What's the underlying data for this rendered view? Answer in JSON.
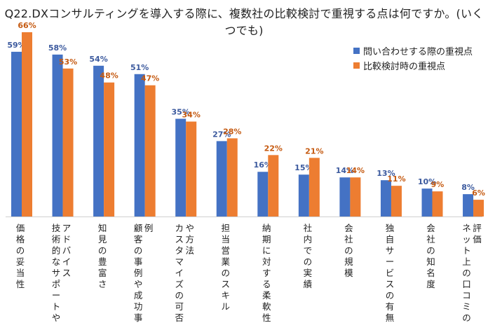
{
  "title": "Q22.DXコンサルティングを導入する際に、複数社の比較検討で重視する点は何ですか。(いくつでも)",
  "colors": {
    "series1": "#4472C4",
    "series2": "#ED7D31",
    "label1": "#3C5A9E",
    "label2": "#C55A11"
  },
  "chart_data": {
    "type": "bar",
    "title": "Q22.DXコンサルティングを導入する際に、複数社の比較検討で重視する点は何ですか。(いくつでも)",
    "categories": [
      "価格の妥当性",
      "技術的なサポートやアドバイス",
      "知見の豊富さ",
      "顧客の事例や成功事例",
      "カスタマイズの可否や方法",
      "担当営業のスキル",
      "納期に対する柔軟性",
      "社内での実績",
      "会社の規模",
      "独自サービスの有無",
      "会社の知名度",
      "ネット上の口コミの評価"
    ],
    "series": [
      {
        "name": "問い合わせする際の重視点",
        "values": [
          59,
          58,
          54,
          51,
          35,
          27,
          16,
          15,
          14,
          13,
          10,
          8
        ]
      },
      {
        "name": "比較検討時の重視点",
        "values": [
          66,
          53,
          48,
          47,
          34,
          28,
          22,
          21,
          14,
          11,
          9,
          6
        ]
      }
    ],
    "value_suffix": "%",
    "ylim": [
      0,
      70
    ],
    "xlabel": "",
    "ylabel": "",
    "grid": false,
    "legend": "top-right"
  }
}
